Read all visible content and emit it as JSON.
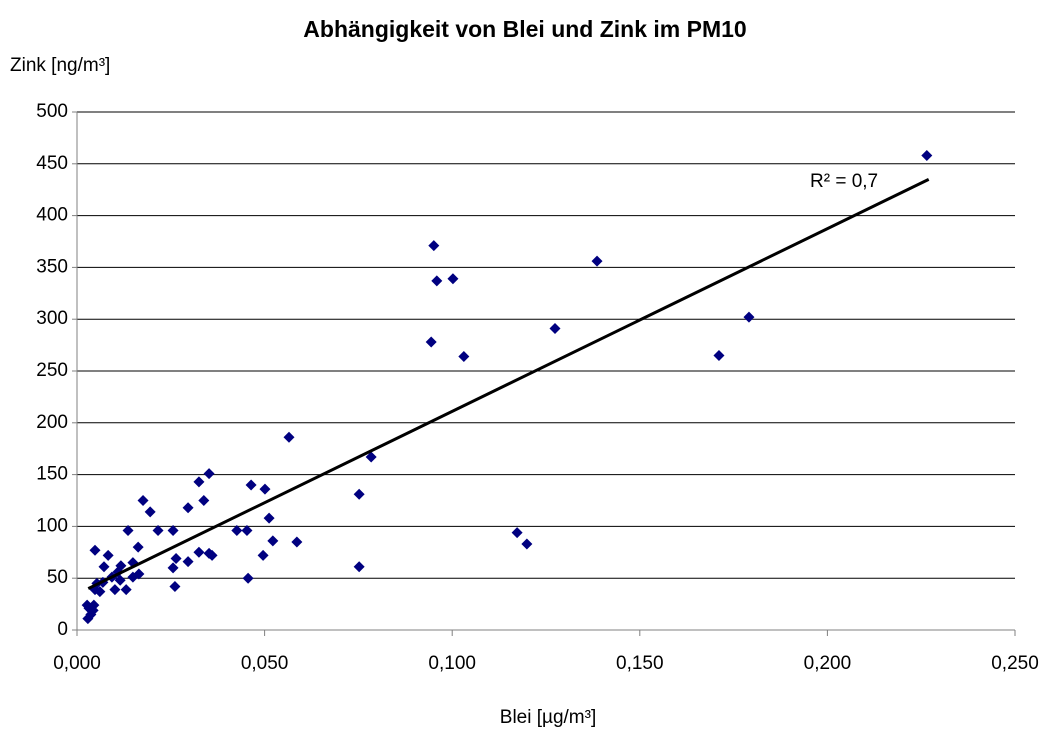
{
  "chart_data": {
    "type": "scatter",
    "title": "Abhängigkeit von Blei und Zink im PM10",
    "x_label": "Blei [µg/m³]",
    "y_label": "Zink [ng/m³]",
    "annotation": "R² = 0,7",
    "color": "#000080",
    "grid": true,
    "xlim": [
      0,
      0.25
    ],
    "ylim": [
      0,
      500
    ],
    "xticks": [
      {
        "value": 0,
        "label": "0,000"
      },
      {
        "value": 0.05,
        "label": "0,050"
      },
      {
        "value": 0.1,
        "label": "0,100"
      },
      {
        "value": 0.15,
        "label": "0,150"
      },
      {
        "value": 0.2,
        "label": "0,200"
      },
      {
        "value": 0.25,
        "label": "0,250"
      }
    ],
    "yticks": [
      0,
      50,
      100,
      150,
      200,
      250,
      300,
      350,
      400,
      450,
      500
    ],
    "x": [
      0.2265,
      0.1711,
      0.1791,
      0.1386,
      0.1274,
      0.0951,
      0.0959,
      0.1002,
      0.0944,
      0.1031,
      0.1173,
      0.1199,
      0.0784,
      0.0752,
      0.0752,
      0.0565,
      0.0586,
      0.0464,
      0.0501,
      0.0512,
      0.0522,
      0.0496,
      0.0456,
      0.0426,
      0.0453,
      0.0352,
      0.0338,
      0.0325,
      0.0325,
      0.0352,
      0.036,
      0.0296,
      0.0296,
      0.0264,
      0.0256,
      0.0256,
      0.0261,
      0.0216,
      0.0195,
      0.0176,
      0.0163,
      0.0165,
      0.0149,
      0.0149,
      0.0136,
      0.0131,
      0.0115,
      0.0109,
      0.0101,
      0.0093,
      0.0083,
      0.0072,
      0.0069,
      0.0061,
      0.0048,
      0.0048,
      0.0045,
      0.0043,
      0.0037,
      0.0029,
      0.0027,
      0.0032,
      0.0117,
      0.0053
    ],
    "y": [
      458,
      265,
      302,
      356,
      291,
      371,
      337,
      339,
      278,
      264,
      94,
      83,
      167,
      131,
      61,
      186,
      85,
      140,
      136,
      108,
      86,
      72,
      50,
      96,
      96,
      151,
      125,
      143,
      75,
      74,
      72,
      118,
      66,
      69,
      96,
      60,
      42,
      96,
      114,
      125,
      80,
      54,
      51,
      65,
      96,
      39,
      48,
      56,
      39,
      51,
      72,
      61,
      46,
      37,
      77,
      39,
      24,
      19,
      15,
      11,
      24,
      21,
      62,
      45
    ],
    "trendline": {
      "color": "#000000",
      "x": [
        0.003,
        0.227
      ],
      "y": [
        40,
        435
      ]
    }
  }
}
